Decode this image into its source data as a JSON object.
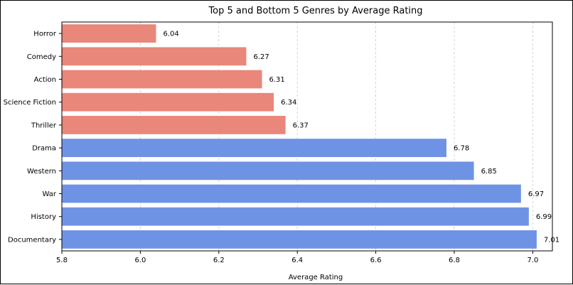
{
  "chart_data": {
    "type": "bar",
    "orientation": "horizontal",
    "title": "Top 5 and Bottom 5 Genres by Average Rating",
    "xlabel": "Average Rating",
    "ylabel": "",
    "xlim": [
      5.8,
      7.05
    ],
    "xticks": [
      "5.8",
      "6.0",
      "6.2",
      "6.4",
      "6.6",
      "6.8",
      "7.0"
    ],
    "grid": "vertical dashed",
    "categories": [
      "Horror",
      "Comedy",
      "Action",
      "Science Fiction",
      "Thriller",
      "Drama",
      "Western",
      "War",
      "History",
      "Documentary"
    ],
    "values": [
      6.04,
      6.27,
      6.31,
      6.34,
      6.37,
      6.78,
      6.85,
      6.97,
      6.99,
      7.01
    ],
    "value_labels": [
      "6.04",
      "6.27",
      "6.31",
      "6.34",
      "6.37",
      "6.78",
      "6.85",
      "6.97",
      "6.99",
      "7.01"
    ],
    "group": [
      "bottom",
      "bottom",
      "bottom",
      "bottom",
      "bottom",
      "top",
      "top",
      "top",
      "top",
      "top"
    ],
    "colors": {
      "bottom": "#E8877A",
      "top": "#6F93E4"
    }
  }
}
